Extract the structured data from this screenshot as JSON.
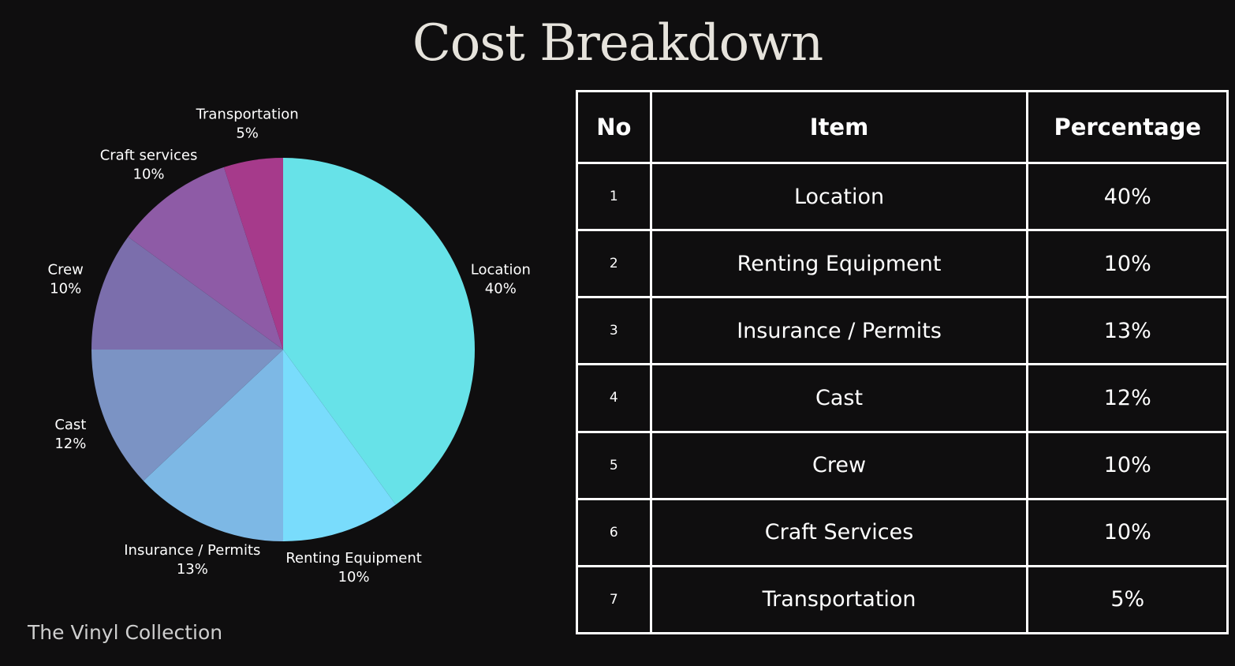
{
  "title": "Cost Breakdown",
  "footer": "The Vinyl Collection",
  "table": {
    "headers": [
      "No",
      "Item",
      "Percentage"
    ],
    "rows": [
      {
        "no": "1",
        "item": "Location",
        "pct": "40%"
      },
      {
        "no": "2",
        "item": "Renting Equipment",
        "pct": "10%"
      },
      {
        "no": "3",
        "item": "Insurance / Permits",
        "pct": "13%"
      },
      {
        "no": "4",
        "item": "Cast",
        "pct": "12%"
      },
      {
        "no": "5",
        "item": "Crew",
        "pct": "10%"
      },
      {
        "no": "6",
        "item": "Craft Services",
        "pct": "10%"
      },
      {
        "no": "7",
        "item": "Transportation",
        "pct": "5%"
      }
    ]
  },
  "chart_data": {
    "type": "pie",
    "start_angle": "12 o'clock",
    "direction": "clockwise",
    "slices": [
      {
        "label": "Location",
        "value": 40,
        "value_label": "40%",
        "color": "#67e2e8"
      },
      {
        "label": "Renting Equipment",
        "value": 10,
        "value_label": "10%",
        "color": "#79dcfc"
      },
      {
        "label": "Insurance / Permits",
        "value": 13,
        "value_label": "13%",
        "color": "#7db8e5"
      },
      {
        "label": "Cast",
        "value": 12,
        "value_label": "12%",
        "color": "#7b93c4"
      },
      {
        "label": "Crew",
        "value": 10,
        "value_label": "10%",
        "color": "#7b6eac"
      },
      {
        "label": "Craft services",
        "value": 10,
        "value_label": "10%",
        "color": "#8e5ba6"
      },
      {
        "label": "Transportation",
        "value": 5,
        "value_label": "5%",
        "color": "#a63a8b"
      }
    ]
  }
}
